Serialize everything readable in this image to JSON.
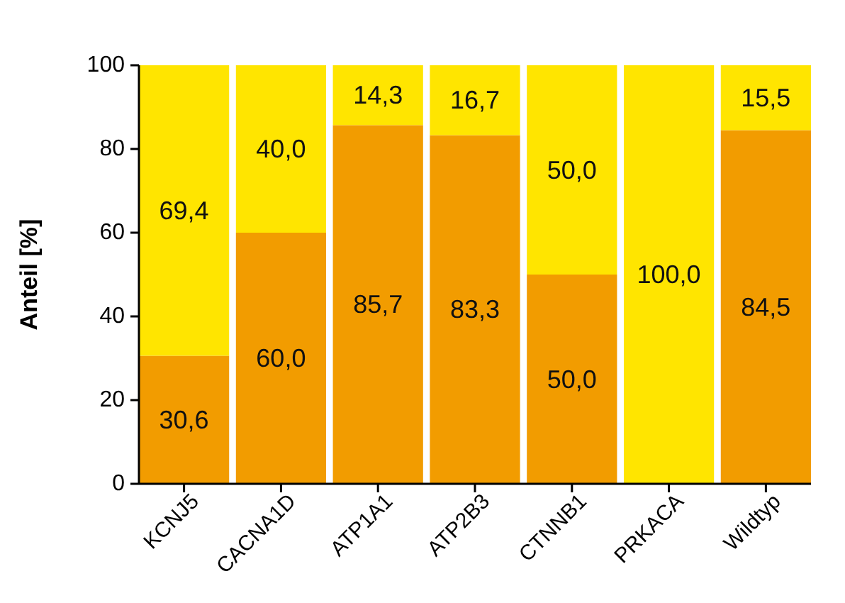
{
  "chart_data": {
    "type": "bar",
    "stacked": true,
    "ylabel": "Anteil [%]",
    "categories": [
      "KCNJ5",
      "CACNA1D",
      "ATP1A1",
      "ATP2B3",
      "CTNNB1",
      "PRKACA",
      "Wildtyp"
    ],
    "series": [
      {
        "color": "#f29c00",
        "values": [
          30.6,
          60.0,
          85.7,
          83.3,
          50.0,
          0,
          84.5
        ],
        "value_labels": [
          "30,6",
          "60,0",
          "85,7",
          "83,3",
          "50,0",
          null,
          "84,5"
        ]
      },
      {
        "color": "#ffe500",
        "values": [
          69.4,
          40.0,
          14.3,
          16.7,
          50.0,
          100.0,
          15.5
        ],
        "value_labels": [
          "69,4",
          "40,0",
          "14,3",
          "16,7",
          "50,0",
          "100,0",
          "15,5"
        ]
      }
    ],
    "ylim": [
      0,
      100
    ],
    "yticks": [
      0,
      20,
      40,
      60,
      80,
      100
    ],
    "grid": false
  }
}
